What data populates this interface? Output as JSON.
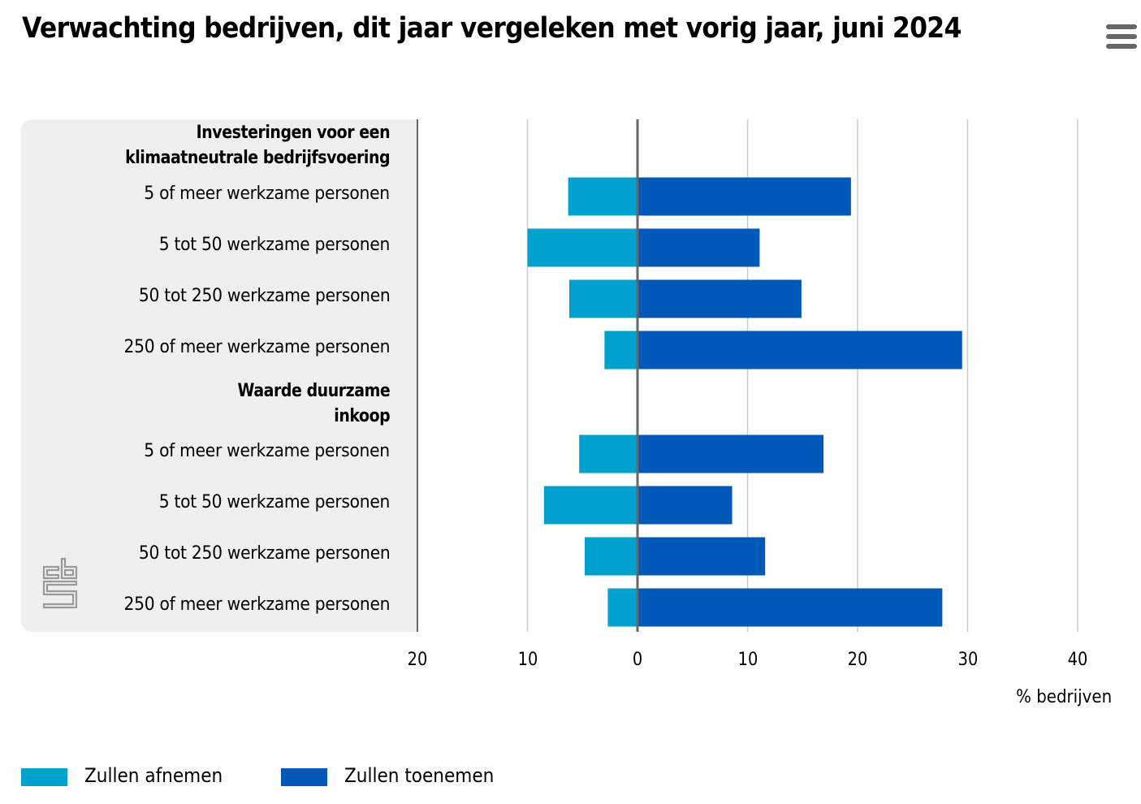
{
  "header": {
    "title": "Verwachting bedrijven, dit jaar vergeleken met vorig jaar, juni 2024",
    "menu_icon": "hamburger-menu-icon"
  },
  "logo": {
    "name": "cbs-logo-icon",
    "color": "#9a9a9a"
  },
  "colors": {
    "afnemen": "#00a1cd",
    "toenemen": "#0058b8",
    "zero_line": "#666666",
    "grid": "#cccccc",
    "label_panel": "#efefef"
  },
  "chart_data": {
    "type": "bar",
    "orientation": "horizontal-diverging",
    "title": "Verwachting bedrijven, dit jaar vergeleken met vorig jaar, juni 2024",
    "xlabel": "% bedrijven",
    "ylabel": "",
    "xlim": [
      -20,
      40
    ],
    "x_ticks": [
      -20,
      -10,
      0,
      10,
      20,
      30,
      40
    ],
    "x_tick_labels": [
      "20",
      "10",
      "0",
      "10",
      "20",
      "30",
      "40"
    ],
    "grid": true,
    "legend_position": "bottom-left",
    "groups": [
      {
        "label": "Investeringen voor een klimaatneutrale bedrijfsvoering",
        "label_lines": [
          "Investeringen voor een",
          "klimaatneutrale bedrijfsvoering"
        ],
        "categories": [
          "5 of meer werkzame personen",
          "5 tot 50 werkzame personen",
          "50 tot 250 werkzame personen",
          "250 of meer werkzame personen"
        ]
      },
      {
        "label": "Waarde duurzame inkoop",
        "label_lines": [
          "Waarde duurzame",
          "inkoop"
        ],
        "categories": [
          "5 of meer werkzame personen",
          "5 tot 50 werkzame personen",
          "50 tot 250 werkzame personen",
          "250 of meer werkzame personen"
        ]
      }
    ],
    "series": [
      {
        "name": "Zullen afnemen",
        "color": "#00a1cd",
        "direction": "negative",
        "values": [
          6.3,
          10.0,
          6.2,
          3.0,
          5.3,
          8.5,
          4.8,
          2.7
        ]
      },
      {
        "name": "Zullen toenemen",
        "color": "#0058b8",
        "direction": "positive",
        "values": [
          19.4,
          11.1,
          14.9,
          29.5,
          16.9,
          8.6,
          11.6,
          27.7
        ]
      }
    ]
  },
  "legend": {
    "items": [
      {
        "label": "Zullen afnemen",
        "color": "#00a1cd"
      },
      {
        "label": "Zullen toenemen",
        "color": "#0058b8"
      }
    ]
  }
}
